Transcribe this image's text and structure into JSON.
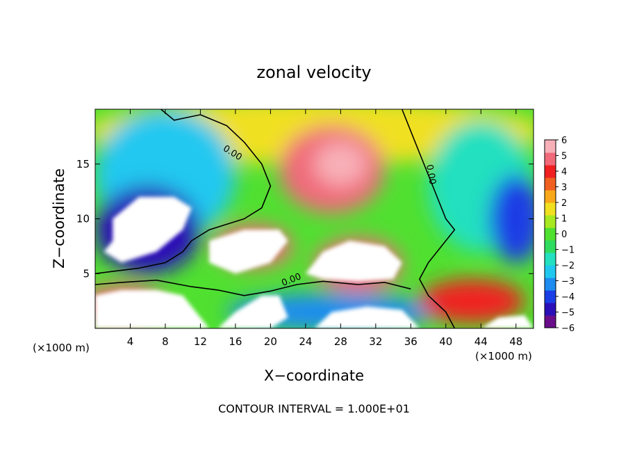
{
  "chart_data": {
    "type": "heatmap",
    "title": "zonal velocity",
    "xlabel": "X−coordinate",
    "ylabel": "Z−coordinate",
    "x_unit_left": "(×1000 m)",
    "x_unit_right": "(×1000 m)",
    "footer": "CONTOUR INTERVAL = 1.000E+01",
    "xlim": [
      0,
      50
    ],
    "ylim": [
      0,
      20
    ],
    "x_ticks": [
      4,
      8,
      12,
      16,
      20,
      24,
      28,
      32,
      36,
      40,
      44,
      48
    ],
    "x_tick_labels": [
      "4",
      "8",
      "12",
      "16",
      "20",
      "24",
      "28",
      "32",
      "36",
      "40",
      "44",
      "48"
    ],
    "y_ticks": [
      5,
      10,
      15
    ],
    "y_tick_labels": [
      "5",
      "10",
      "15"
    ],
    "contour_labels": [
      {
        "text": "0.00",
        "x": 15.5,
        "y": 15.8,
        "rotate": 32
      },
      {
        "text": "0.00",
        "x": 38.0,
        "y": 14.0,
        "rotate": 80
      },
      {
        "text": "0.00",
        "x": 22.5,
        "y": 4.2,
        "rotate": -22
      }
    ],
    "colorbar": {
      "min": -6,
      "max": 6,
      "tick_values": [
        6,
        5,
        4,
        3,
        2,
        1,
        0,
        -1,
        -2,
        -3,
        -4,
        -5,
        -6
      ],
      "tick_labels": [
        "6",
        "5",
        "4",
        "3",
        "2",
        "1",
        "0",
        "−1",
        "−2",
        "−3",
        "−4",
        "−5",
        "−6"
      ],
      "colors": [
        "#6a0d8a",
        "#2a0fb8",
        "#1a3ee6",
        "#1e8cf0",
        "#20c8f0",
        "#22e0c0",
        "#30dc60",
        "#50e030",
        "#a8e820",
        "#f0e020",
        "#f8a818",
        "#f06020",
        "#f02020",
        "#f06a7a",
        "#f8b0b8"
      ]
    },
    "regions": [
      {
        "x": 25,
        "y": 18.0,
        "rx": 26,
        "ry": 3.0,
        "value": 1.5
      },
      {
        "x": 27,
        "y": 14.5,
        "rx": 6,
        "ry": 4.0,
        "value": 4.5
      },
      {
        "x": 28,
        "y": 15.0,
        "rx": 3,
        "ry": 2.0,
        "value": 5.5
      },
      {
        "x": 8,
        "y": 14,
        "rx": 8,
        "ry": 6.0,
        "value": -2.5
      },
      {
        "x": 44,
        "y": 13,
        "rx": 6,
        "ry": 6.0,
        "value": -2.0
      },
      {
        "x": 48,
        "y": 10,
        "rx": 3,
        "ry": 4.0,
        "value": -4.0
      },
      {
        "x": 6,
        "y": 9,
        "rx": 6,
        "ry": 4.0,
        "value": -5.0
      },
      {
        "x": 18,
        "y": 7.5,
        "rx": 4.5,
        "ry": 2.0,
        "value": 4.5
      },
      {
        "x": 30,
        "y": 5.8,
        "rx": 5,
        "ry": 2.5,
        "value": 5.0
      },
      {
        "x": 3,
        "y": 2.0,
        "rx": 5,
        "ry": 2.0,
        "value": 4.5
      },
      {
        "x": 27,
        "y": 1.5,
        "rx": 12,
        "ry": 1.7,
        "value": -3.5
      },
      {
        "x": 43,
        "y": 2.5,
        "rx": 6,
        "ry": 2.0,
        "value": 4.0
      }
    ],
    "saturated_regions": [
      {
        "label": "high-left-white",
        "color": "#ffffff",
        "points": [
          [
            2,
            10
          ],
          [
            5,
            12
          ],
          [
            9,
            12
          ],
          [
            11,
            11
          ],
          [
            10,
            9
          ],
          [
            7,
            7
          ],
          [
            3,
            6
          ],
          [
            1,
            7
          ],
          [
            2,
            8
          ]
        ]
      },
      {
        "label": "mid-left-white",
        "color": "#ffffff",
        "points": [
          [
            13,
            8
          ],
          [
            17,
            9
          ],
          [
            21,
            9
          ],
          [
            22,
            8
          ],
          [
            20,
            6
          ],
          [
            16,
            5
          ],
          [
            13,
            6
          ]
        ]
      },
      {
        "label": "mid-center-white",
        "color": "#ffffff",
        "points": [
          [
            24,
            5
          ],
          [
            26,
            7
          ],
          [
            29,
            8
          ],
          [
            33,
            7.5
          ],
          [
            35,
            6
          ],
          [
            34,
            4.5
          ],
          [
            30,
            4.3
          ],
          [
            26,
            4.5
          ]
        ]
      },
      {
        "label": "bottom-left-white",
        "color": "#ffffff",
        "points": [
          [
            0,
            0
          ],
          [
            0,
            3
          ],
          [
            3,
            3.5
          ],
          [
            7,
            3.5
          ],
          [
            10,
            3
          ],
          [
            12,
            1
          ],
          [
            13,
            0
          ]
        ]
      },
      {
        "label": "bottom-mid-white",
        "color": "#ffffff",
        "points": [
          [
            14,
            0
          ],
          [
            16,
            1.5
          ],
          [
            19,
            3
          ],
          [
            21,
            3
          ],
          [
            22,
            1
          ],
          [
            20,
            0
          ]
        ]
      },
      {
        "label": "bottom-right-white",
        "color": "#ffffff",
        "points": [
          [
            25,
            0
          ],
          [
            27,
            1.5
          ],
          [
            31,
            2
          ],
          [
            35,
            1.7
          ],
          [
            37,
            0
          ]
        ]
      },
      {
        "label": "bottom-far-right-white",
        "color": "#ffffff",
        "points": [
          [
            44,
            0
          ],
          [
            46,
            1
          ],
          [
            49,
            1.2
          ],
          [
            50,
            0
          ]
        ]
      }
    ],
    "zero_contour": [
      [
        [
          7.5,
          20
        ],
        [
          9,
          19
        ],
        [
          12,
          19.5
        ],
        [
          15,
          18.5
        ],
        [
          17,
          17
        ],
        [
          19,
          15
        ],
        [
          20,
          13
        ],
        [
          19,
          11
        ],
        [
          17,
          10
        ],
        [
          15,
          9.5
        ],
        [
          13,
          9
        ],
        [
          11,
          8
        ],
        [
          10,
          7
        ],
        [
          8,
          6
        ],
        [
          5,
          5.5
        ],
        [
          2,
          5.2
        ],
        [
          0,
          5.0
        ]
      ],
      [
        [
          35,
          20
        ],
        [
          36,
          18
        ],
        [
          37,
          16
        ],
        [
          38,
          14
        ],
        [
          39,
          12
        ],
        [
          40,
          10
        ],
        [
          41,
          9
        ],
        [
          40,
          8
        ],
        [
          38,
          6
        ],
        [
          37,
          4.5
        ],
        [
          38,
          3
        ],
        [
          40,
          1.5
        ],
        [
          41,
          0
        ]
      ],
      [
        [
          0,
          4
        ],
        [
          3,
          4.2
        ],
        [
          7,
          4.4
        ],
        [
          11,
          3.8
        ],
        [
          14,
          3.5
        ],
        [
          17,
          3.0
        ],
        [
          20,
          3.4
        ],
        [
          23,
          4.0
        ],
        [
          26,
          4.3
        ],
        [
          30,
          4.0
        ],
        [
          33,
          4.2
        ],
        [
          36,
          3.6
        ]
      ]
    ]
  }
}
